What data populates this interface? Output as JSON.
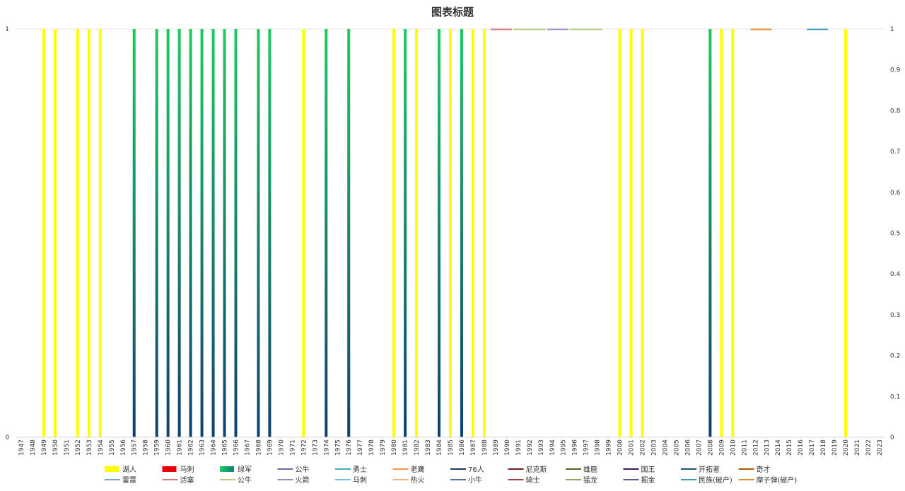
{
  "chart_data": {
    "type": "bar",
    "title": "图表标题",
    "xlabel": "",
    "ylabel": "",
    "ylim": [
      0,
      1
    ],
    "y_left_ticks": [
      "0",
      "1"
    ],
    "y_right_ticks": [
      "0",
      "0.1",
      "0.2",
      "0.3",
      "0.4",
      "0.5",
      "0.6",
      "0.7",
      "0.8",
      "0.9",
      "1"
    ],
    "categories": [
      "1947",
      "1948",
      "1949",
      "1950",
      "1951",
      "1952",
      "1953",
      "1954",
      "1955",
      "1956",
      "1957",
      "1958",
      "1959",
      "1960",
      "1961",
      "1962",
      "1963",
      "1964",
      "1965",
      "1966",
      "1967",
      "1968",
      "1969",
      "1970",
      "1971",
      "1972",
      "1973",
      "1974",
      "1975",
      "1976",
      "1977",
      "1978",
      "1979",
      "1980",
      "1981",
      "1982",
      "1983",
      "1984",
      "1985",
      "1986",
      "1987",
      "1988",
      "1989",
      "1990",
      "1991",
      "1992",
      "1993",
      "1994",
      "1995",
      "1996",
      "1997",
      "1998",
      "1999",
      "2000",
      "2001",
      "2002",
      "2003",
      "2004",
      "2005",
      "2006",
      "2007",
      "2008",
      "2009",
      "2010",
      "2011",
      "2012",
      "2013",
      "2014",
      "2015",
      "2016",
      "2017",
      "2018",
      "2019",
      "2020",
      "2021",
      "2022",
      "2023"
    ],
    "grid": true,
    "legend_position": "bottom",
    "bar_series": [
      {
        "name": "湖人",
        "color": "#ffff00",
        "years": [
          "1949",
          "1950",
          "1952",
          "1953",
          "1954",
          "1972",
          "1980",
          "1982",
          "1985",
          "1987",
          "1988",
          "2000",
          "2001",
          "2002",
          "2009",
          "2010",
          "2020"
        ]
      },
      {
        "name": "马刺",
        "color": "#e8000b",
        "years": []
      },
      {
        "name": "绿军",
        "color": "gradient-green",
        "years": [
          "1957",
          "1959",
          "1960",
          "1961",
          "1962",
          "1963",
          "1964",
          "1965",
          "1966",
          "1968",
          "1969",
          "1974",
          "1976",
          "1981",
          "1984",
          "1986",
          "2008"
        ]
      }
    ],
    "line_series": [
      {
        "name": "公牛",
        "color": "#8064a2",
        "years": []
      },
      {
        "name": "勇士",
        "color": "#4bacc6",
        "years": []
      },
      {
        "name": "老鹰",
        "color": "#f79646",
        "years": []
      },
      {
        "name": "76人",
        "color": "#1f3864",
        "years": []
      },
      {
        "name": "尼克斯",
        "color": "#7b1c1c",
        "years": []
      },
      {
        "name": "雄鹿",
        "color": "#4f6228",
        "years": []
      },
      {
        "name": "国王",
        "color": "#3f1f4f",
        "years": []
      },
      {
        "name": "开拓者",
        "color": "#205867",
        "years": []
      },
      {
        "name": "奇才",
        "color": "#b25b00",
        "years": []
      },
      {
        "name": "雷霆",
        "color": "#7ba0cd",
        "years": []
      },
      {
        "name": "活塞",
        "color": "#d07873",
        "years": [
          "1989",
          "1990"
        ]
      },
      {
        "name": "公牛",
        "color": "#b3cc82",
        "years": [
          "1991",
          "1992",
          "1993",
          "1996",
          "1997",
          "1998"
        ]
      },
      {
        "name": "火箭",
        "color": "#a08ac0",
        "years": [
          "1994",
          "1995"
        ]
      },
      {
        "name": "马刺",
        "color": "#6fc4d8",
        "years": []
      },
      {
        "name": "热火",
        "color": "#f9b57a",
        "years": []
      },
      {
        "name": "小牛",
        "color": "#4e6fa8",
        "years": []
      },
      {
        "name": "骑士",
        "color": "#a5413b",
        "years": []
      },
      {
        "name": "猛龙",
        "color": "#8ea65a",
        "years": []
      },
      {
        "name": "掘金",
        "color": "#6f5590",
        "years": []
      },
      {
        "name": "民族(破产)",
        "color": "#3a9bb0",
        "years": [
          "2017",
          "2018"
        ]
      },
      {
        "name": "摩子弹(破产)",
        "color": "#e88a2e",
        "years": [
          "2012",
          "2013"
        ]
      }
    ]
  }
}
